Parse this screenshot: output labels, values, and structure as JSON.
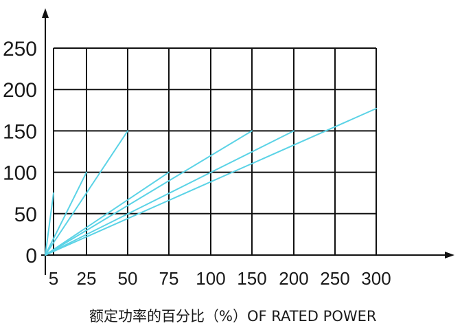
{
  "chart_data": {
    "type": "line",
    "xlabel": "额定功率的百分比（%）OF RATED POWER",
    "ylabel": "",
    "x_ticks": [
      "5",
      "25",
      "50",
      "75",
      "100",
      "150",
      "200",
      "250",
      "300"
    ],
    "y_ticks": [
      "250",
      "200",
      "150",
      "100",
      "50",
      "0"
    ],
    "ylim": [
      0,
      250
    ],
    "grid": true,
    "line_color": "#5bd3e6",
    "series": [
      {
        "points": [
          [
            0,
            0
          ],
          [
            5,
            75
          ]
        ]
      },
      {
        "points": [
          [
            0,
            0
          ],
          [
            25,
            100
          ]
        ]
      },
      {
        "points": [
          [
            0,
            0
          ],
          [
            50,
            150
          ]
        ]
      },
      {
        "points": [
          [
            0,
            0
          ],
          [
            75,
            100
          ]
        ]
      },
      {
        "points": [
          [
            0,
            0
          ],
          [
            150,
            150
          ]
        ]
      },
      {
        "points": [
          [
            0,
            0
          ],
          [
            200,
            150
          ]
        ]
      },
      {
        "points": [
          [
            0,
            0
          ],
          [
            300,
            177
          ]
        ]
      }
    ]
  }
}
